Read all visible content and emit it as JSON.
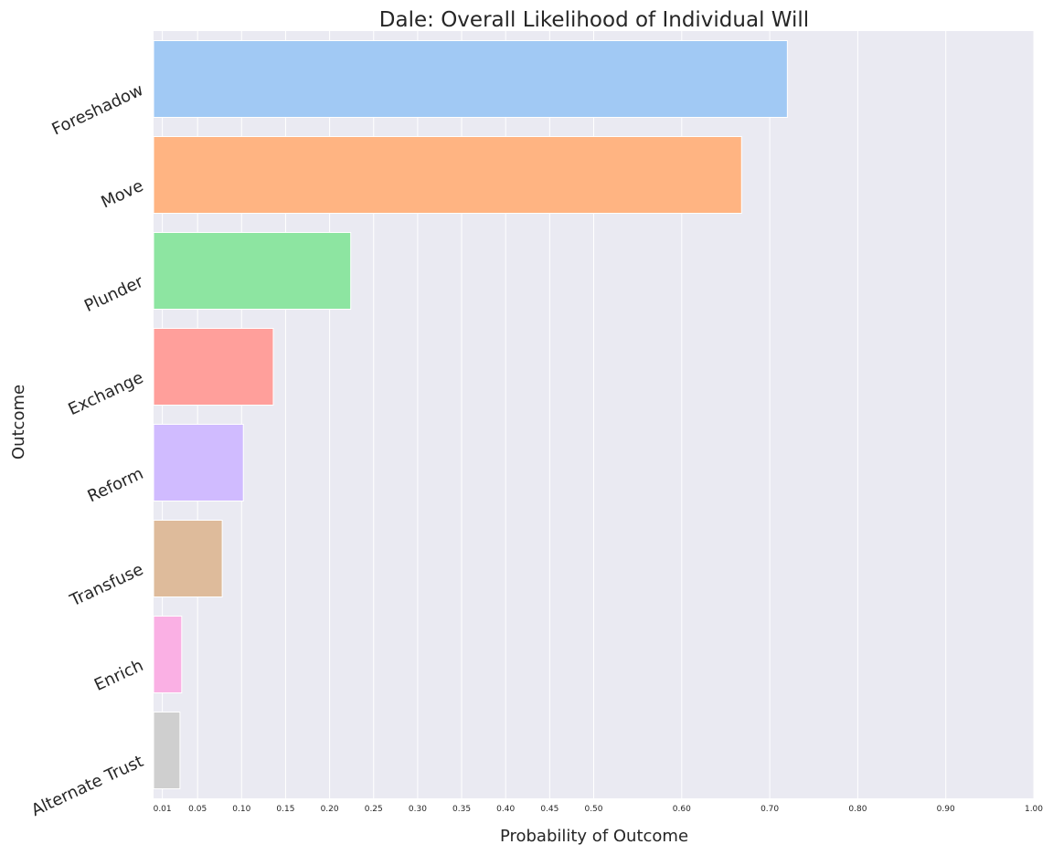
{
  "chart_data": {
    "type": "bar",
    "orientation": "horizontal",
    "title": "Dale: Overall Likelihood of Individual Will",
    "xlabel": "Probability of Outcome",
    "ylabel": "Outcome",
    "xlim": [
      0,
      1.0
    ],
    "x_ticks": [
      0.01,
      0.05,
      0.1,
      0.15,
      0.2,
      0.25,
      0.3,
      0.35,
      0.4,
      0.45,
      0.5,
      0.6,
      0.7,
      0.8,
      0.9,
      1.0
    ],
    "x_tick_labels": [
      "0.01",
      "0.05",
      "0.10",
      "0.15",
      "0.20",
      "0.25",
      "0.30",
      "0.35",
      "0.40",
      "0.45",
      "0.50",
      "0.60",
      "0.70",
      "0.80",
      "0.90",
      "1.00"
    ],
    "categories": [
      "Foreshadow",
      "Move",
      "Plunder",
      "Exchange",
      "Reform",
      "Transfuse",
      "Enrich",
      "Alternate Trust"
    ],
    "values": [
      0.72,
      0.668,
      0.224,
      0.136,
      0.102,
      0.078,
      0.032,
      0.03
    ],
    "colors": [
      "#a1c9f4",
      "#ffb482",
      "#8de5a1",
      "#ff9f9b",
      "#d0bbff",
      "#debb9b",
      "#fab0e4",
      "#cfcfcf"
    ],
    "background": "#eaeaf2",
    "grid": "vertical"
  }
}
